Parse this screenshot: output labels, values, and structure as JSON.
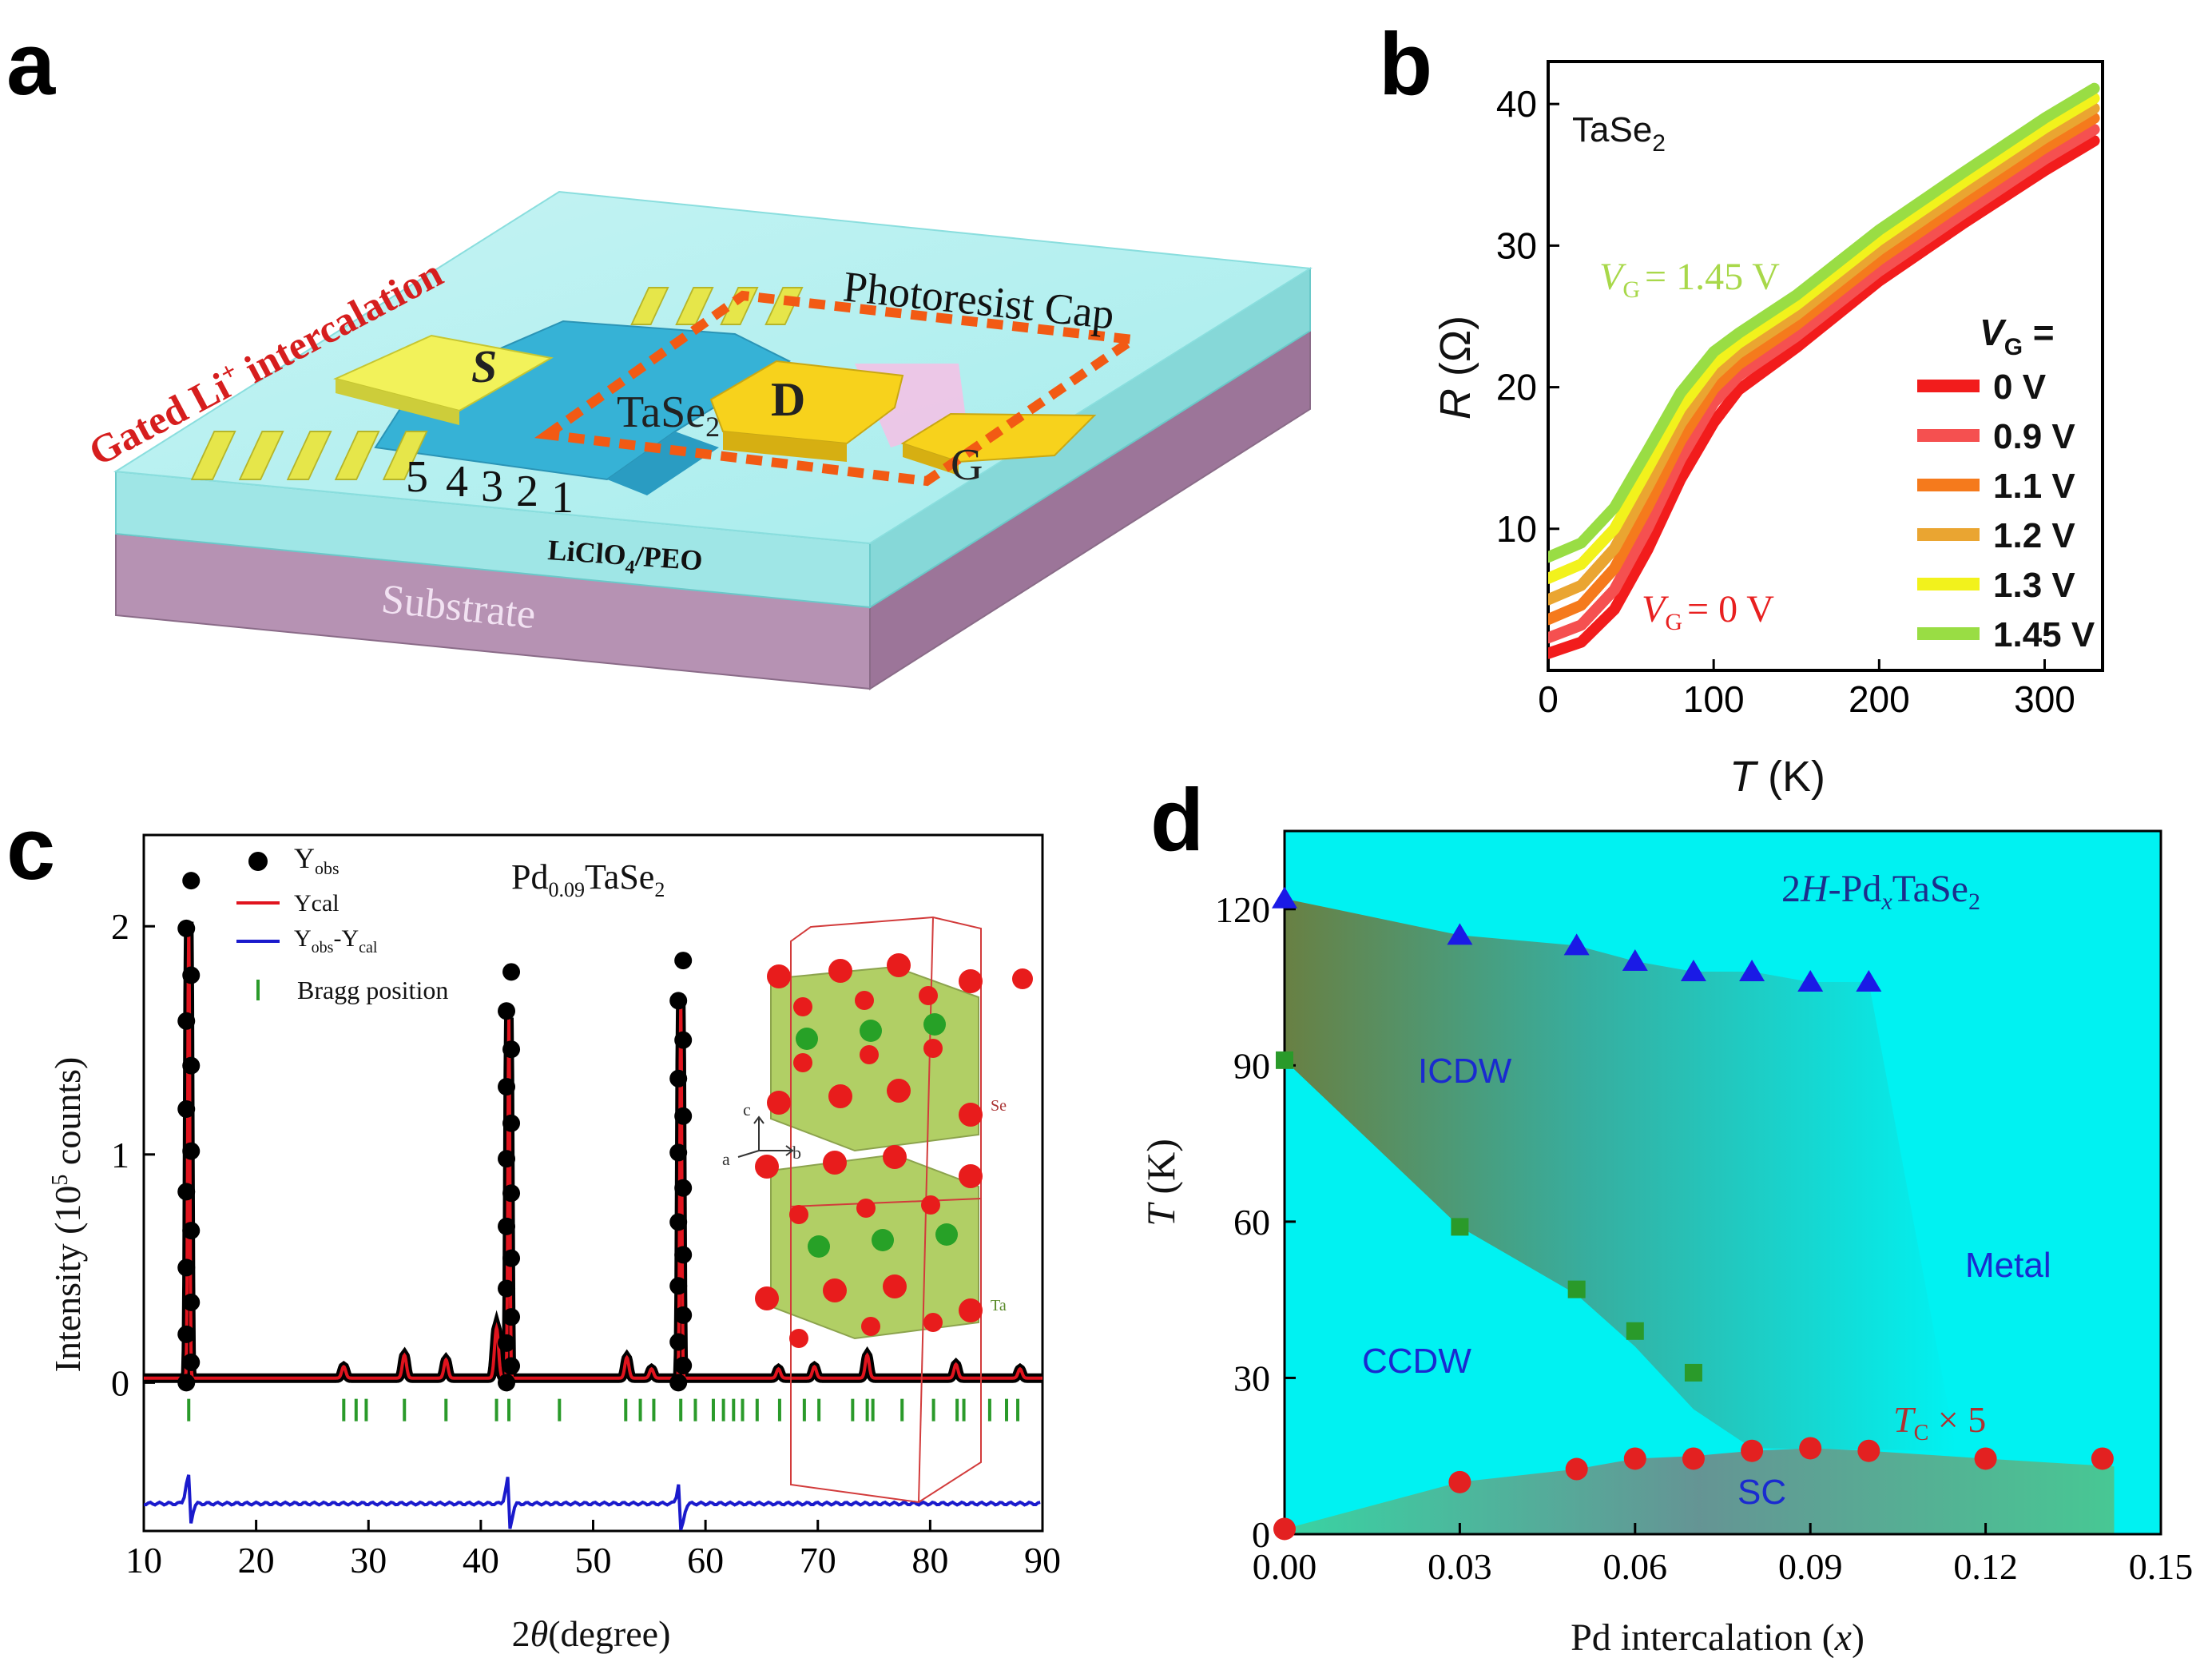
{
  "panels": {
    "a": "a",
    "b": "b",
    "c": "c",
    "d": "d"
  },
  "colors": {
    "dcyan": "#00f2f2",
    "dblue": "#1a1ae6",
    "dred": "#e32121",
    "dgreen": "#2a9a2a",
    "xred": "#e0141e",
    "xblue": "#1a1acc"
  },
  "panel_a": {
    "side_label": "Gated Li",
    "side_label_sup": "+",
    "side_label_tail": " intercalation",
    "cap_label": "Photoresist Cap",
    "source": "S",
    "drain": "D",
    "gate": "G",
    "sample": "TaSe",
    "sample_sub": "2",
    "electrodes": [
      "5",
      "4",
      "3",
      "2",
      "1"
    ],
    "electrolyte": "LiClO",
    "electrolyte_sub": "4",
    "electrolyte_tail": "/PEO",
    "substrate": "Substrate"
  },
  "chart_data": [
    {
      "panel": "b",
      "type": "line",
      "title": "TaSe2",
      "title_main": "TaSe",
      "title_sub": "2",
      "xlabel": "T (K)",
      "xlabel_main": "T",
      "xlabel_unit": " (K)",
      "ylabel": "R (Ω)",
      "ylabel_main": "R",
      "ylabel_unit": " (Ω)",
      "xlim": [
        0,
        335
      ],
      "ylim": [
        0,
        43
      ],
      "xticks": [
        0,
        100,
        200,
        300
      ],
      "yticks": [
        10,
        20,
        30,
        40
      ],
      "legend_title": "V",
      "legend_title_sub": "G",
      "legend_title_tail": " =",
      "annotation_top": "= 1.45 V",
      "annotation_bottom": "= 0 V",
      "series": [
        {
          "name": "0 V",
          "color": "#f21c1c",
          "x": [
            0,
            20,
            40,
            60,
            80,
            100,
            115,
            150,
            200,
            250,
            300,
            330
          ],
          "y": [
            1.2,
            2.0,
            4.3,
            8.5,
            13.5,
            17.5,
            19.8,
            22.8,
            27.5,
            31.5,
            35.3,
            37.4
          ]
        },
        {
          "name": "0.9 V",
          "color": "#f55050",
          "x": [
            0,
            20,
            40,
            60,
            80,
            100,
            115,
            150,
            200,
            250,
            300,
            330
          ],
          "y": [
            2.3,
            3.2,
            5.7,
            10.0,
            14.9,
            18.9,
            20.8,
            23.6,
            28.2,
            32.2,
            36.1,
            38.2
          ]
        },
        {
          "name": "1.1 V",
          "color": "#f57a1c",
          "x": [
            0,
            20,
            40,
            60,
            80,
            100,
            115,
            150,
            200,
            250,
            300,
            330
          ],
          "y": [
            3.6,
            4.6,
            7.2,
            11.5,
            16.2,
            19.9,
            21.6,
            24.4,
            29.0,
            33.0,
            36.9,
            39.0
          ]
        },
        {
          "name": "1.2 V",
          "color": "#eaa531",
          "x": [
            0,
            20,
            40,
            60,
            80,
            100,
            115,
            150,
            200,
            250,
            300,
            330
          ],
          "y": [
            5.0,
            6.0,
            8.6,
            12.9,
            17.4,
            20.8,
            22.4,
            25.1,
            29.7,
            33.7,
            37.6,
            39.7
          ]
        },
        {
          "name": "1.3 V",
          "color": "#f2f21c",
          "x": [
            0,
            20,
            40,
            60,
            80,
            100,
            115,
            150,
            200,
            250,
            300,
            330
          ],
          "y": [
            6.5,
            7.5,
            10.0,
            14.2,
            18.5,
            21.6,
            23.1,
            25.8,
            30.4,
            34.4,
            38.3,
            40.4
          ]
        },
        {
          "name": "1.45 V",
          "color": "#99dd44",
          "x": [
            0,
            20,
            40,
            60,
            80,
            100,
            115,
            150,
            200,
            250,
            300,
            330
          ],
          "y": [
            8.0,
            9.0,
            11.5,
            15.5,
            19.6,
            22.5,
            23.8,
            26.5,
            31.1,
            35.1,
            39.0,
            41.1
          ]
        }
      ]
    },
    {
      "panel": "c",
      "type": "line",
      "title": "Pd0.09TaSe2",
      "title_main": "Pd",
      "title_sub1": "0.09",
      "title_mid": "TaSe",
      "title_sub2": "2",
      "xlabel": "2θ (degree)",
      "xlabel_pre": "2",
      "xlabel_theta": "θ",
      "xlabel_post": "(degree)",
      "ylabel": "Intensity (10^5 counts)",
      "ylabel_pre": "Intensity (10",
      "ylabel_sup": "5",
      "ylabel_post": " counts)",
      "xlim": [
        10,
        90
      ],
      "ylim": [
        -0.65,
        2.4
      ],
      "xticks": [
        10,
        20,
        30,
        40,
        50,
        60,
        70,
        80,
        90
      ],
      "yticks": [
        0,
        1,
        2
      ],
      "legend": [
        {
          "name": "Yobs",
          "main": "Y",
          "sub": "obs",
          "marker": "dot",
          "color": "#000000"
        },
        {
          "name": "Ycal",
          "main": "Ycal",
          "sub": "",
          "marker": "line",
          "color": "#e0141e"
        },
        {
          "name": "Yobs-Ycal",
          "main": "Y",
          "sub": "obs",
          "mid": "-Y",
          "sub2": "cal",
          "marker": "line",
          "color": "#1a1acc"
        },
        {
          "name": "Bragg position",
          "main": "Bragg position",
          "sub": "",
          "marker": "tick",
          "color": "#2a9a2a"
        }
      ],
      "peaks": [
        {
          "x": 14.0,
          "height": 2.0,
          "obs_max": 2.2
        },
        {
          "x": 42.5,
          "height": 1.58,
          "obs_max": 1.8
        },
        {
          "x": 57.8,
          "height": 1.65,
          "obs_max": 1.85
        }
      ],
      "small_peaks": [
        {
          "x": 27.8,
          "height": 0.05
        },
        {
          "x": 33.2,
          "height": 0.1
        },
        {
          "x": 36.9,
          "height": 0.08
        },
        {
          "x": 41.4,
          "height": 0.22
        },
        {
          "x": 53.0,
          "height": 0.09
        },
        {
          "x": 55.2,
          "height": 0.04
        },
        {
          "x": 66.5,
          "height": 0.04
        },
        {
          "x": 69.7,
          "height": 0.05
        },
        {
          "x": 74.4,
          "height": 0.1
        },
        {
          "x": 82.3,
          "height": 0.06
        },
        {
          "x": 88.0,
          "height": 0.04
        }
      ],
      "bragg_positions": [
        14.0,
        27.8,
        28.9,
        29.8,
        33.2,
        36.9,
        41.4,
        42.5,
        47.0,
        52.9,
        54.2,
        55.4,
        57.8,
        59.1,
        60.7,
        61.6,
        62.5,
        63.3,
        64.6,
        66.6,
        68.8,
        70.1,
        73.1,
        74.4,
        74.9,
        77.5,
        80.3,
        82.4,
        83.0,
        85.3,
        86.8,
        87.8
      ],
      "inset_labels": {
        "c": "c",
        "a": "a",
        "b": "b",
        "se": "Se",
        "ta": "Ta"
      }
    },
    {
      "panel": "d",
      "type": "scatter",
      "title": "2H-PdxTaSe2",
      "title_pre": "2",
      "title_h": "H",
      "title_mid": "-Pd",
      "title_sub_x": "x",
      "title_post": "TaSe",
      "title_sub2": "2",
      "xlabel": "Pd intercalation (x)",
      "xlabel_pre": "Pd intercalation (",
      "xlabel_var": "x",
      "xlabel_post": ")",
      "ylabel": "T (K)",
      "ylabel_main": "T",
      "ylabel_unit": " (K)",
      "xlim": [
        0,
        0.15
      ],
      "ylim": [
        0,
        135
      ],
      "xticks": [
        "0.00",
        "0.03",
        "0.06",
        "0.09",
        "0.12",
        "0.15"
      ],
      "yticks": [
        "0",
        "30",
        "60",
        "90",
        "120"
      ],
      "regions": {
        "icdw": "ICDW",
        "ccdw": "CCDW",
        "metal": "Metal",
        "sc": "SC"
      },
      "tc_label_main": "T",
      "tc_label_sub": "C",
      "tc_label_tail": " × 5",
      "series": [
        {
          "name": "ICDW transition",
          "marker": "triangle",
          "color": "#1a1ae6",
          "x": [
            0.0,
            0.03,
            0.05,
            0.06,
            0.07,
            0.08,
            0.09,
            0.1
          ],
          "y": [
            122,
            115,
            113,
            110,
            108,
            108,
            106,
            106
          ]
        },
        {
          "name": "CCDW transition",
          "marker": "square",
          "color": "#2a9a2a",
          "x": [
            0.0,
            0.03,
            0.05,
            0.06,
            0.07
          ],
          "y": [
            91,
            59,
            47,
            39,
            31
          ]
        },
        {
          "name": "Tc x 5",
          "marker": "circle",
          "color": "#e32121",
          "x": [
            0.0,
            0.03,
            0.05,
            0.06,
            0.07,
            0.08,
            0.09,
            0.1,
            0.12,
            0.14
          ],
          "y": [
            1,
            10,
            12.5,
            14.5,
            14.5,
            16,
            16.5,
            16,
            14.5,
            14.5
          ]
        }
      ]
    }
  ]
}
